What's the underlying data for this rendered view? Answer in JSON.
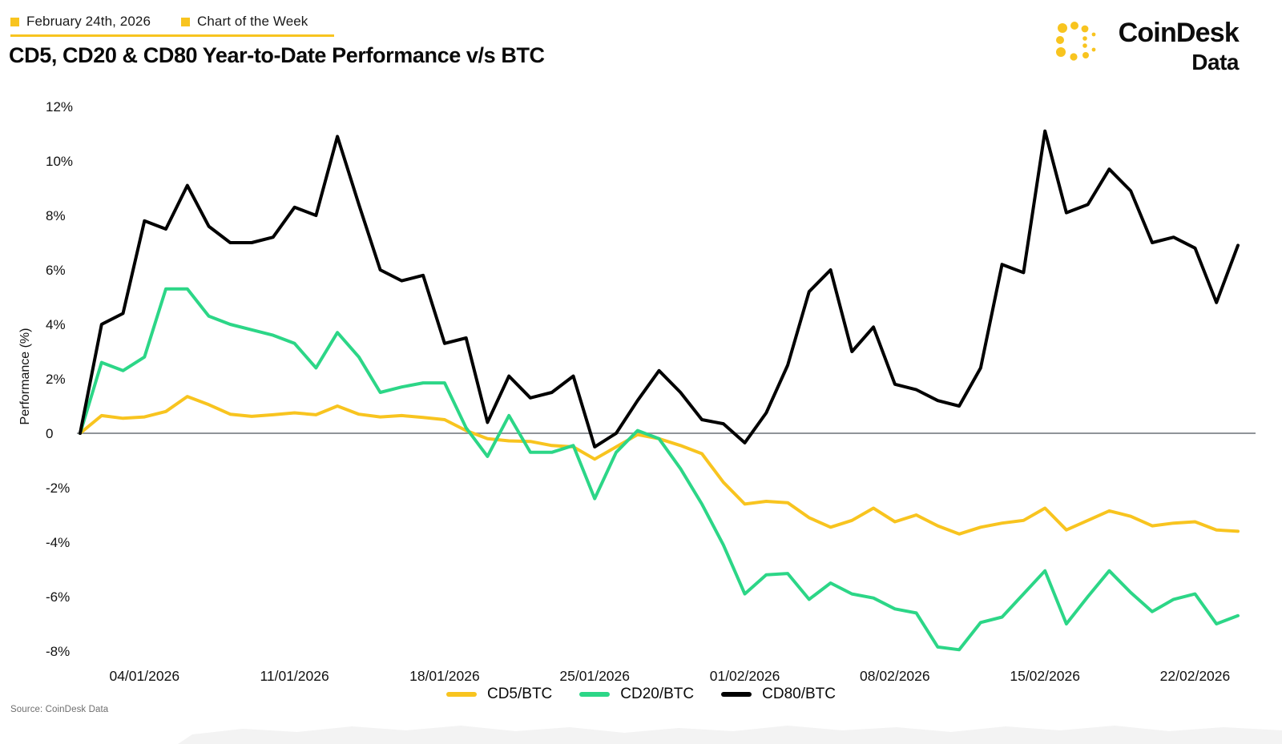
{
  "header": {
    "date_label": "February 24th, 2026",
    "series_label": "Chart of the Week",
    "title": "CD5, CD20 & CD80 Year-to-Date Performance v/s BTC"
  },
  "logo": {
    "brand": "CoinDesk",
    "sub": "Data",
    "mark_icon": "coindesk-dotted-c-icon"
  },
  "icons": {
    "kicker_bullet": "square-bullet-icon"
  },
  "source": "Source: CoinDesk Data",
  "colors": {
    "accent_yellow": "#F8C41F",
    "series_green": "#2CD687",
    "series_black": "#000000",
    "zero_line": "#8F9499",
    "muted_text": "#6E6E6E",
    "text": "#0A0A0A",
    "bottom_band": "#F3F3F3"
  },
  "chart_data": {
    "type": "line",
    "title": "CD5, CD20 & CD80 Year-to-Date Performance v/s BTC",
    "xlabel": "",
    "ylabel": "Performance (%)",
    "ylim": [
      -8,
      12
    ],
    "grid": false,
    "zero_line": true,
    "legend_position": "bottom",
    "x_unit": "daily",
    "x_start": "01/01/2026",
    "x_end": "24/02/2026",
    "yticks": {
      "values": [
        12,
        10,
        8,
        6,
        4,
        2,
        0,
        -2,
        -4,
        -6,
        -8
      ],
      "labels": [
        "12%",
        "10%",
        "8%",
        "6%",
        "4%",
        "2%",
        "0",
        "-2%",
        "-4%",
        "-6%",
        "-8%"
      ]
    },
    "xticks": {
      "day_indices": [
        3,
        10,
        17,
        24,
        31,
        38,
        45,
        52
      ],
      "labels": [
        "04/01/2026",
        "11/01/2026",
        "18/01/2026",
        "25/01/2026",
        "01/02/2026",
        "08/02/2026",
        "15/02/2026",
        "22/02/2026"
      ]
    },
    "series": [
      {
        "name": "CD5/BTC",
        "color": "#F8C41F",
        "values": [
          0,
          0.65,
          0.55,
          0.6,
          0.8,
          1.35,
          1.05,
          0.7,
          0.62,
          0.68,
          0.75,
          0.68,
          1.0,
          0.7,
          0.6,
          0.65,
          0.58,
          0.5,
          0.1,
          -0.2,
          -0.28,
          -0.3,
          -0.45,
          -0.5,
          -0.95,
          -0.5,
          -0.05,
          -0.2,
          -0.45,
          -0.75,
          -1.8,
          -2.6,
          -2.5,
          -2.55,
          -3.1,
          -3.45,
          -3.2,
          -2.75,
          -3.25,
          -3.0,
          -3.4,
          -3.7,
          -3.45,
          -3.3,
          -3.2,
          -2.75,
          -3.55,
          -3.2,
          -2.85,
          -3.05,
          -3.4,
          -3.3,
          -3.25,
          -3.55,
          -3.6
        ]
      },
      {
        "name": "CD20/BTC",
        "color": "#2CD687",
        "values": [
          0,
          2.6,
          2.3,
          2.8,
          5.3,
          5.3,
          4.3,
          4.0,
          3.8,
          3.6,
          3.3,
          2.4,
          3.7,
          2.8,
          1.5,
          1.7,
          1.85,
          1.85,
          0.2,
          -0.85,
          0.65,
          -0.7,
          -0.7,
          -0.45,
          -2.4,
          -0.7,
          0.1,
          -0.2,
          -1.3,
          -2.6,
          -4.1,
          -5.9,
          -5.2,
          -5.15,
          -6.1,
          -5.5,
          -5.9,
          -6.05,
          -6.45,
          -6.6,
          -7.85,
          -7.95,
          -6.95,
          -6.75,
          -5.9,
          -5.05,
          -7.0,
          -6.0,
          -5.05,
          -5.85,
          -6.55,
          -6.1,
          -5.9,
          -7.0,
          -6.7
        ]
      },
      {
        "name": "CD80/BTC",
        "color": "#000000",
        "values": [
          0,
          4.0,
          4.4,
          7.8,
          7.5,
          9.1,
          7.6,
          7.0,
          7.0,
          7.2,
          8.3,
          8.0,
          10.9,
          8.4,
          6.0,
          5.6,
          5.8,
          3.3,
          3.5,
          0.4,
          2.1,
          1.3,
          1.5,
          2.1,
          -0.5,
          0.0,
          1.2,
          2.3,
          1.5,
          0.5,
          0.35,
          -0.35,
          0.75,
          2.5,
          5.2,
          6.0,
          3.0,
          3.9,
          1.8,
          1.6,
          1.2,
          1.0,
          2.4,
          6.2,
          5.9,
          11.1,
          8.1,
          8.4,
          9.7,
          8.9,
          7.0,
          7.2,
          6.8,
          4.8,
          6.9
        ]
      }
    ]
  }
}
